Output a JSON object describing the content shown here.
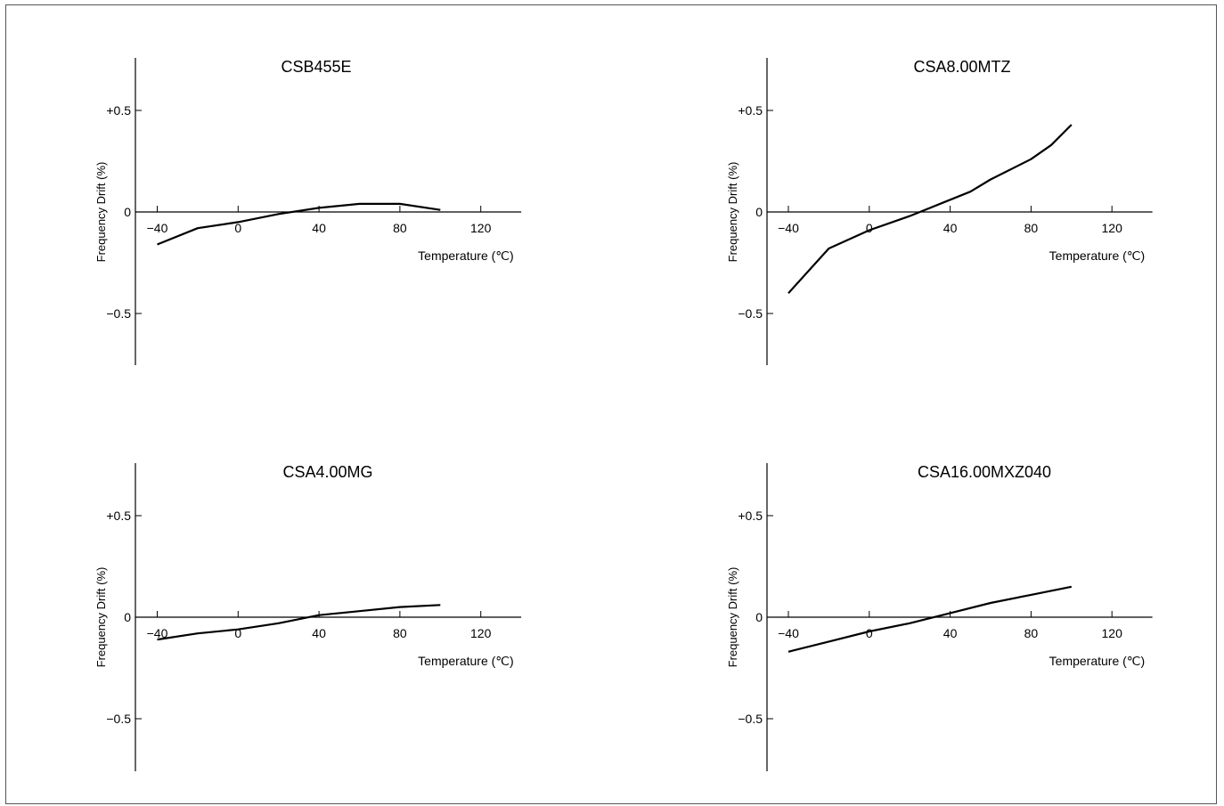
{
  "colors": {
    "line": "#000000",
    "frame": "#555555",
    "background": "#ffffff"
  },
  "chart_data": [
    {
      "type": "line",
      "title": "CSB455E",
      "xlabel": "Temperature (℃)",
      "ylabel": "Frequency Drift (%)",
      "xticks": [
        "−40",
        "0",
        "40",
        "80",
        "120"
      ],
      "yticks": [
        "+0.5",
        "0",
        "−0.5"
      ],
      "xlim": [
        -40,
        120
      ],
      "ylim": [
        -0.5,
        0.5
      ],
      "grid": false,
      "series": [
        {
          "x": [
            -40,
            -20,
            0,
            20,
            40,
            60,
            80,
            100
          ],
          "y": [
            -0.16,
            -0.08,
            -0.05,
            -0.01,
            0.02,
            0.04,
            0.04,
            0.01
          ]
        }
      ]
    },
    {
      "type": "line",
      "title": "CSA8.00MTZ",
      "xlabel": "Temperature (℃)",
      "ylabel": "Frequency Drift (%)",
      "xticks": [
        "−40",
        "0",
        "40",
        "80",
        "120"
      ],
      "yticks": [
        "+0.5",
        "0",
        "−0.5"
      ],
      "xlim": [
        -40,
        120
      ],
      "ylim": [
        -0.5,
        0.5
      ],
      "grid": false,
      "series": [
        {
          "x": [
            -40,
            -20,
            0,
            20,
            40,
            50,
            60,
            80,
            90,
            100
          ],
          "y": [
            -0.4,
            -0.18,
            -0.09,
            -0.02,
            0.06,
            0.1,
            0.16,
            0.26,
            0.33,
            0.43
          ]
        }
      ]
    },
    {
      "type": "line",
      "title": "CSA4.00MG",
      "xlabel": "Temperature (℃)",
      "ylabel": "Frequency Drift (%)",
      "xticks": [
        "−40",
        "0",
        "40",
        "80",
        "120"
      ],
      "yticks": [
        "+0.5",
        "0",
        "−0.5"
      ],
      "xlim": [
        -40,
        120
      ],
      "ylim": [
        -0.5,
        0.5
      ],
      "grid": false,
      "series": [
        {
          "x": [
            -40,
            -20,
            0,
            20,
            40,
            60,
            80,
            100
          ],
          "y": [
            -0.11,
            -0.08,
            -0.06,
            -0.03,
            0.01,
            0.03,
            0.05,
            0.06
          ]
        }
      ]
    },
    {
      "type": "line",
      "title": "CSA16.00MXZ040",
      "xlabel": "Temperature (℃)",
      "ylabel": "Frequency Drift (%)",
      "xticks": [
        "−40",
        "0",
        "40",
        "80",
        "120"
      ],
      "yticks": [
        "+0.5",
        "0",
        "−0.5"
      ],
      "xlim": [
        -40,
        120
      ],
      "ylim": [
        -0.5,
        0.5
      ],
      "grid": false,
      "series": [
        {
          "x": [
            -40,
            -20,
            0,
            20,
            40,
            60,
            80,
            100
          ],
          "y": [
            -0.17,
            -0.12,
            -0.07,
            -0.03,
            0.02,
            0.07,
            0.11,
            0.15
          ]
        }
      ]
    }
  ]
}
